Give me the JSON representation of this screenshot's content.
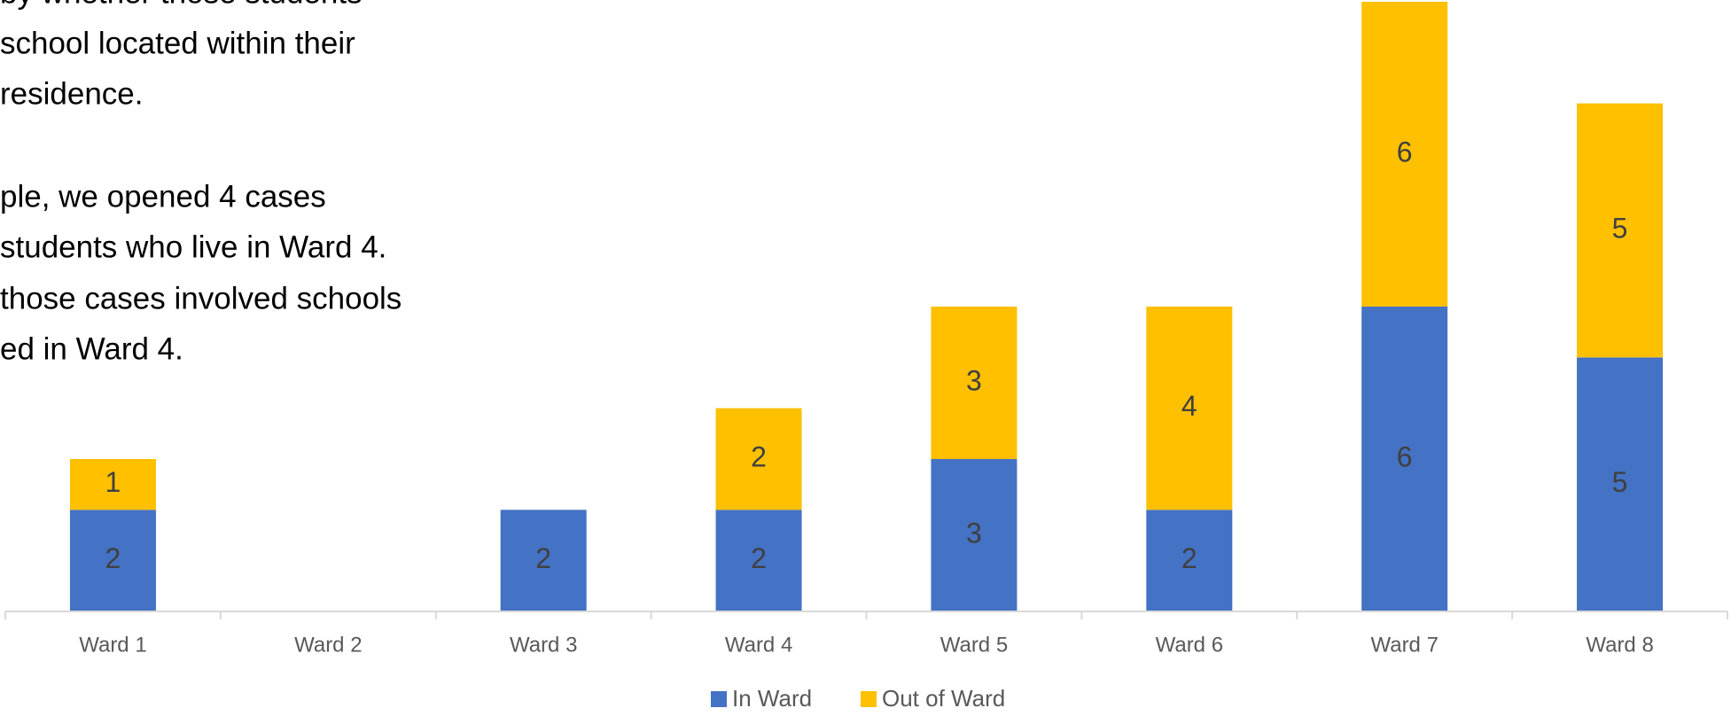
{
  "text_block": {
    "lines": [
      "by whether those students",
      "school located within their",
      "residence.",
      "ple, we opened 4 cases",
      "students who live in Ward 4.",
      "those cases involved schools",
      "ed in Ward 4."
    ]
  },
  "chart_data": {
    "type": "stacked_bar",
    "categories": [
      "Ward 1",
      "Ward 2",
      "Ward 3",
      "Ward 4",
      "Ward 5",
      "Ward 6",
      "Ward 7",
      "Ward 8"
    ],
    "series": [
      {
        "name": "In Ward",
        "color": "#4472c4",
        "values": [
          2,
          null,
          2,
          2,
          3,
          2,
          6,
          5
        ]
      },
      {
        "name": "Out of Ward",
        "color": "#ffc000",
        "values": [
          1,
          null,
          null,
          2,
          3,
          4,
          6,
          5
        ]
      }
    ],
    "ylim": [
      0,
      12
    ],
    "legend": "bottom"
  }
}
